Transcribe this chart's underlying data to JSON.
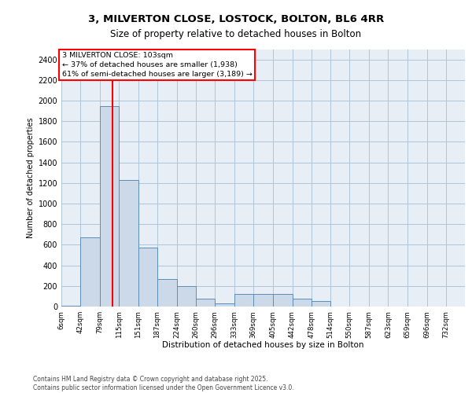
{
  "title1": "3, MILVERTON CLOSE, LOSTOCK, BOLTON, BL6 4RR",
  "title2": "Size of property relative to detached houses in Bolton",
  "xlabel": "Distribution of detached houses by size in Bolton",
  "ylabel": "Number of detached properties",
  "bar_color": "#ccd9e8",
  "bar_edge_color": "#5b8db8",
  "grid_color": "#b0c4d8",
  "background_color": "#e8eef5",
  "redline_x": 103,
  "annotation_line1": "3 MILVERTON CLOSE: 103sqm",
  "annotation_line2": "← 37% of detached houses are smaller (1,938)",
  "annotation_line3": "61% of semi-detached houses are larger (3,189) →",
  "footer1": "Contains HM Land Registry data © Crown copyright and database right 2025.",
  "footer2": "Contains public sector information licensed under the Open Government Licence v3.0.",
  "categories": [
    "6sqm",
    "42sqm",
    "79sqm",
    "115sqm",
    "151sqm",
    "187sqm",
    "224sqm",
    "260sqm",
    "296sqm",
    "333sqm",
    "369sqm",
    "405sqm",
    "442sqm",
    "478sqm",
    "514sqm",
    "550sqm",
    "587sqm",
    "623sqm",
    "659sqm",
    "696sqm",
    "732sqm"
  ],
  "bin_edges": [
    6,
    42,
    79,
    115,
    151,
    187,
    224,
    260,
    296,
    333,
    369,
    405,
    442,
    478,
    514,
    550,
    587,
    623,
    659,
    696,
    732,
    768
  ],
  "values": [
    5,
    670,
    1950,
    1230,
    570,
    270,
    200,
    80,
    30,
    120,
    120,
    120,
    80,
    50,
    0,
    0,
    0,
    0,
    0,
    0,
    0
  ],
  "ylim": [
    0,
    2500
  ],
  "yticks": [
    0,
    200,
    400,
    600,
    800,
    1000,
    1200,
    1400,
    1600,
    1800,
    2000,
    2200,
    2400
  ]
}
